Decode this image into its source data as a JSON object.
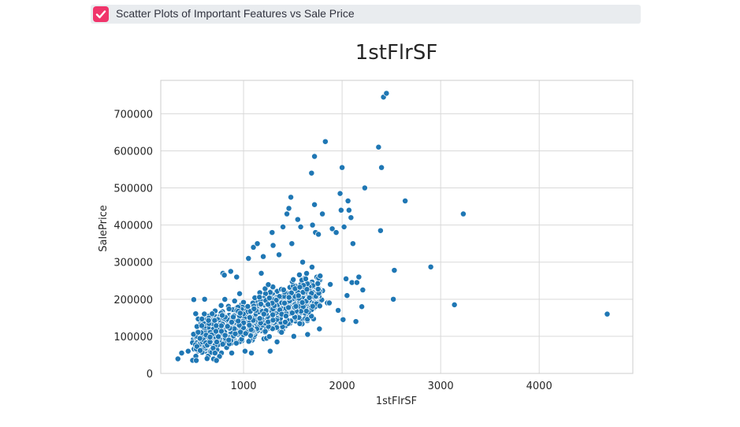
{
  "checkbox": {
    "label": "Scatter Plots of Important Features vs Sale Price",
    "checked": true,
    "accent_color": "#f0356b"
  },
  "chart_data": {
    "type": "scatter",
    "title": "1stFlrSF",
    "xlabel": "1stFlrSF",
    "ylabel": "SalePrice",
    "xlim": [
      160,
      4950
    ],
    "ylim": [
      0,
      790000
    ],
    "xticks": [
      1000,
      2000,
      3000,
      4000
    ],
    "yticks": [
      0,
      100000,
      200000,
      300000,
      400000,
      500000,
      600000,
      700000
    ],
    "xtick_labels": [
      "1000",
      "2000",
      "3000",
      "4000"
    ],
    "ytick_labels": [
      "0",
      "100000",
      "200000",
      "300000",
      "400000",
      "500000",
      "600000",
      "700000"
    ],
    "grid": true,
    "point_color": "#1f77b4",
    "points": [
      [
        334,
        39300
      ],
      [
        372,
        55000
      ],
      [
        438,
        60000
      ],
      [
        483,
        35300
      ],
      [
        495,
        199000
      ],
      [
        520,
        35000
      ],
      [
        560,
        62000
      ],
      [
        605,
        200000
      ],
      [
        630,
        40000
      ],
      [
        660,
        98000
      ],
      [
        696,
        39000
      ],
      [
        710,
        55000
      ],
      [
        725,
        35000
      ],
      [
        790,
        270000
      ],
      [
        805,
        265000
      ],
      [
        850,
        90000
      ],
      [
        870,
        275000
      ],
      [
        880,
        55000
      ],
      [
        930,
        260000
      ],
      [
        960,
        215000
      ],
      [
        1015,
        60000
      ],
      [
        1050,
        310000
      ],
      [
        1080,
        55000
      ],
      [
        1100,
        340000
      ],
      [
        1140,
        350000
      ],
      [
        1180,
        270000
      ],
      [
        1200,
        315000
      ],
      [
        1270,
        60000
      ],
      [
        1290,
        380000
      ],
      [
        1300,
        345000
      ],
      [
        1340,
        85000
      ],
      [
        1360,
        320000
      ],
      [
        1400,
        395000
      ],
      [
        1440,
        430000
      ],
      [
        1460,
        445000
      ],
      [
        1480,
        475000
      ],
      [
        1490,
        350000
      ],
      [
        1510,
        100000
      ],
      [
        1550,
        415000
      ],
      [
        1580,
        395000
      ],
      [
        1600,
        300000
      ],
      [
        1650,
        105000
      ],
      [
        1690,
        540000
      ],
      [
        1700,
        400000
      ],
      [
        1720,
        585000
      ],
      [
        1720,
        455000
      ],
      [
        1730,
        380000
      ],
      [
        1760,
        375000
      ],
      [
        1770,
        120000
      ],
      [
        1800,
        430000
      ],
      [
        1830,
        625000
      ],
      [
        1850,
        190000
      ],
      [
        1870,
        190000
      ],
      [
        1880,
        240000
      ],
      [
        1900,
        390000
      ],
      [
        1940,
        380000
      ],
      [
        1960,
        170000
      ],
      [
        1980,
        485000
      ],
      [
        1990,
        440000
      ],
      [
        2000,
        555000
      ],
      [
        2010,
        145000
      ],
      [
        2020,
        395000
      ],
      [
        2040,
        255000
      ],
      [
        2050,
        210000
      ],
      [
        2060,
        465000
      ],
      [
        2070,
        440000
      ],
      [
        2090,
        420000
      ],
      [
        2100,
        245000
      ],
      [
        2110,
        350000
      ],
      [
        2140,
        140000
      ],
      [
        2150,
        245000
      ],
      [
        2170,
        260000
      ],
      [
        2200,
        180000
      ],
      [
        2210,
        225000
      ],
      [
        2230,
        500000
      ],
      [
        2370,
        610000
      ],
      [
        2390,
        385000
      ],
      [
        2400,
        555000
      ],
      [
        2420,
        745000
      ],
      [
        2450,
        755000
      ],
      [
        2520,
        200000
      ],
      [
        2530,
        278000
      ],
      [
        2640,
        465000
      ],
      [
        2900,
        287000
      ],
      [
        3140,
        185000
      ],
      [
        3230,
        430000
      ],
      [
        4690,
        160000
      ]
    ]
  }
}
